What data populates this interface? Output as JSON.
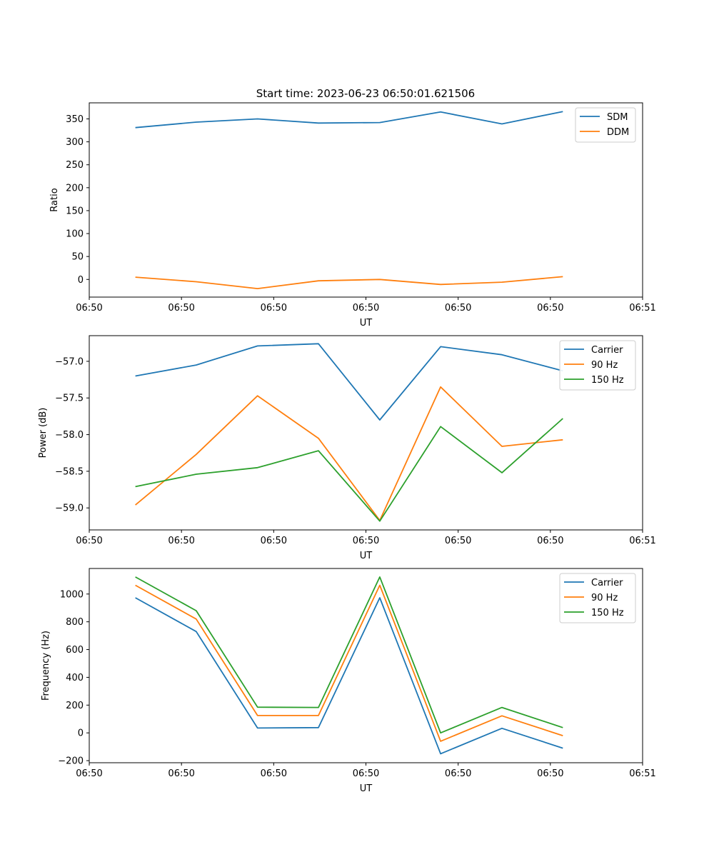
{
  "figure": {
    "title": "Start time: 2023-06-23 06:50:01.621506"
  },
  "chart_data": [
    {
      "type": "line",
      "title": "Start time: 2023-06-23 06:50:01.621506",
      "xlabel": "UT",
      "ylabel": "Ratio",
      "x_tick_labels": [
        "06:50",
        "06:50",
        "06:50",
        "06:50",
        "06:50",
        "06:50",
        "06:51"
      ],
      "xlim": [
        0,
        12
      ],
      "x": [
        1,
        2.32,
        3.65,
        4.97,
        6.3,
        7.62,
        8.95,
        10.27
      ],
      "ylim": [
        -38.5,
        385
      ],
      "y_ticks": [
        0,
        50,
        100,
        150,
        200,
        250,
        300,
        350
      ],
      "legend_position": "top-right",
      "series": [
        {
          "name": "SDM",
          "color": "#1f77b4",
          "values": [
            331,
            343,
            350,
            341,
            342,
            365,
            339,
            366
          ]
        },
        {
          "name": "DDM",
          "color": "#ff7f0e",
          "values": [
            5,
            -5,
            -20,
            -3,
            0,
            -11,
            -6,
            6
          ]
        }
      ]
    },
    {
      "type": "line",
      "title": "",
      "xlabel": "UT",
      "ylabel": "Power (dB)",
      "x_tick_labels": [
        "06:50",
        "06:50",
        "06:50",
        "06:50",
        "06:50",
        "06:50",
        "06:51"
      ],
      "xlim": [
        0,
        12
      ],
      "x": [
        1,
        2.32,
        3.65,
        4.97,
        6.3,
        7.62,
        8.95,
        10.27
      ],
      "ylim": [
        -59.3,
        -56.65
      ],
      "y_ticks": [
        -59.0,
        -58.5,
        -58.0,
        -57.5,
        -57.0
      ],
      "y_tick_labels": [
        "−59.0",
        "−58.5",
        "−58.0",
        "−57.5",
        "−57.0"
      ],
      "legend_position": "top-right",
      "series": [
        {
          "name": "Carrier",
          "color": "#1f77b4",
          "values": [
            -57.2,
            -57.05,
            -56.79,
            -56.76,
            -57.8,
            -56.8,
            -56.91,
            -57.13
          ]
        },
        {
          "name": "90 Hz",
          "color": "#ff7f0e",
          "values": [
            -58.96,
            -58.27,
            -57.47,
            -58.05,
            -59.17,
            -57.35,
            -58.16,
            -58.07
          ]
        },
        {
          "name": "150 Hz",
          "color": "#2ca02c",
          "values": [
            -58.71,
            -58.54,
            -58.45,
            -58.22,
            -59.18,
            -57.89,
            -58.52,
            -57.78
          ]
        }
      ]
    },
    {
      "type": "line",
      "title": "",
      "xlabel": "UT",
      "ylabel": "Frequency (Hz)",
      "x_tick_labels": [
        "06:50",
        "06:50",
        "06:50",
        "06:50",
        "06:50",
        "06:50",
        "06:51"
      ],
      "xlim": [
        0,
        12
      ],
      "x": [
        1,
        2.32,
        3.65,
        4.97,
        6.3,
        7.62,
        8.95,
        10.27
      ],
      "ylim": [
        -215,
        1184
      ],
      "y_ticks": [
        -200,
        0,
        200,
        400,
        600,
        800,
        1000
      ],
      "y_tick_labels": [
        "−200",
        "0",
        "200",
        "400",
        "600",
        "800",
        "1000"
      ],
      "legend_position": "top-right",
      "series": [
        {
          "name": "Carrier",
          "color": "#1f77b4",
          "values": [
            973,
            730,
            35,
            38,
            973,
            -150,
            33,
            -110
          ]
        },
        {
          "name": "90 Hz",
          "color": "#ff7f0e",
          "values": [
            1063,
            820,
            125,
            125,
            1063,
            -60,
            123,
            -20
          ]
        },
        {
          "name": "150 Hz",
          "color": "#2ca02c",
          "values": [
            1123,
            880,
            185,
            183,
            1123,
            0,
            183,
            38
          ]
        }
      ]
    }
  ]
}
